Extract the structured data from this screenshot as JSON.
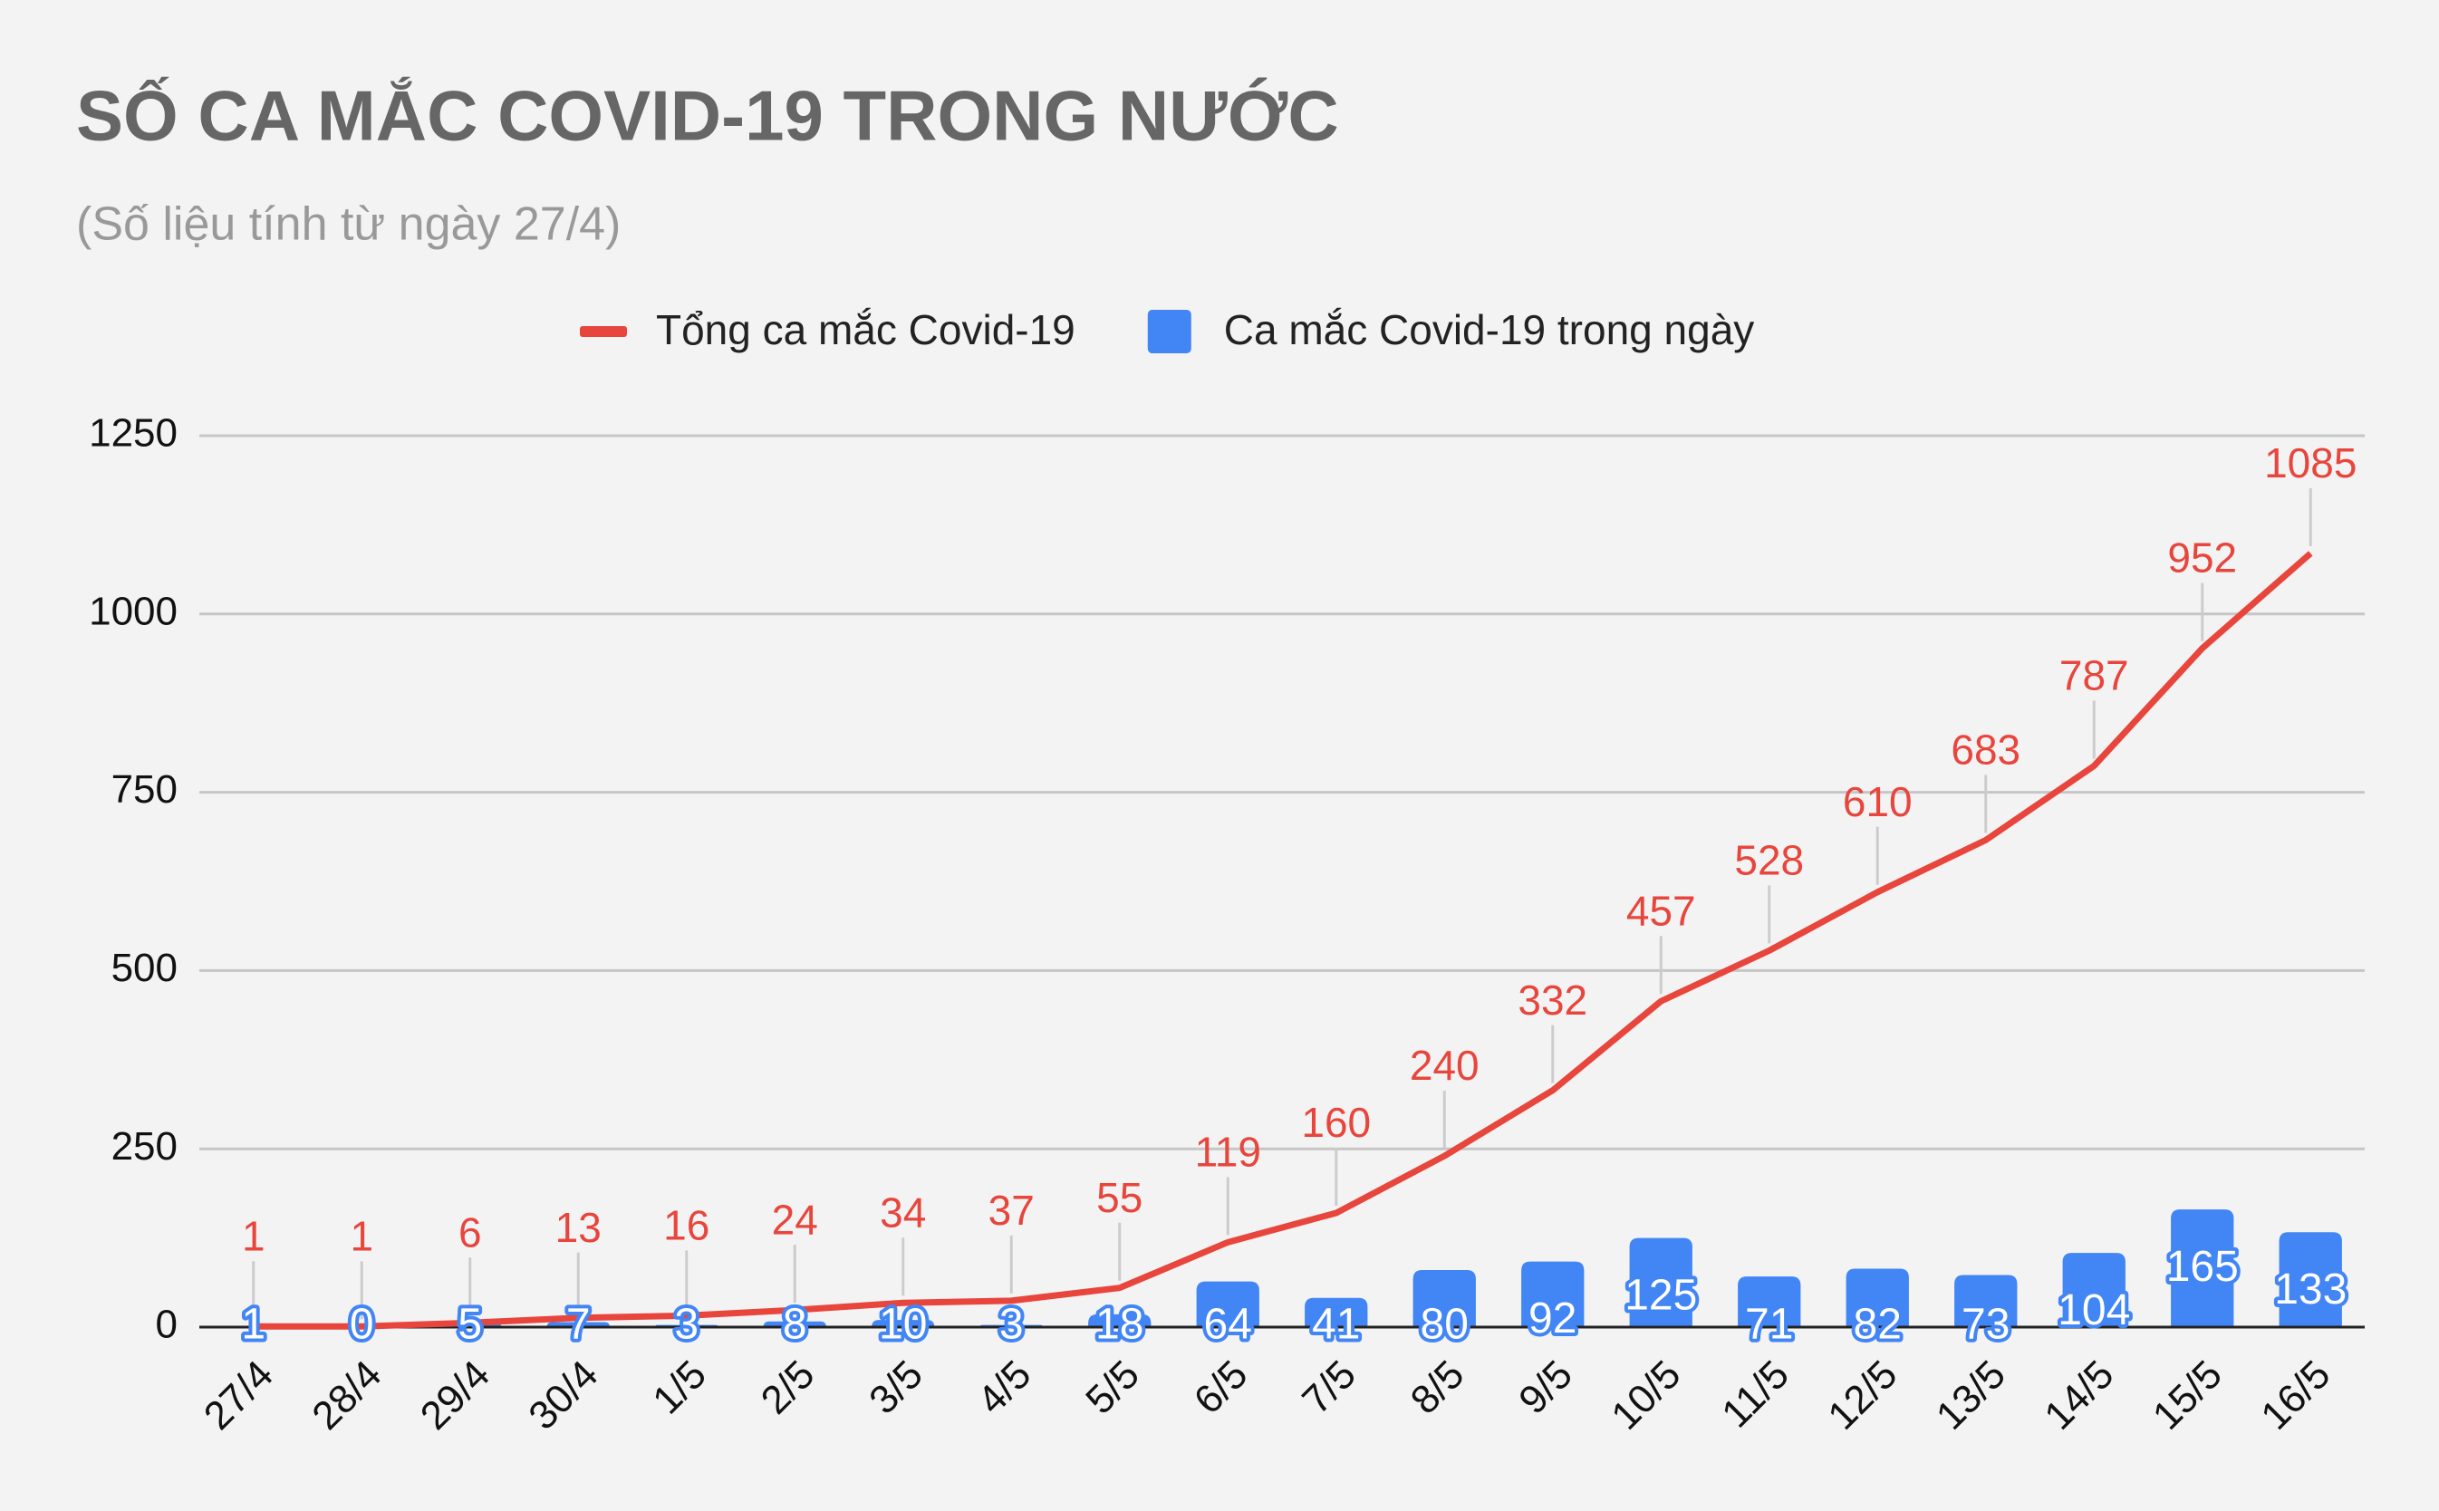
{
  "chart_data": {
    "type": "combo",
    "title": "SỐ CA MẮC COVID-19 TRONG NƯỚC",
    "subtitle": "(Số liệu tính từ ngày 27/4)",
    "categories": [
      "27/4",
      "28/4",
      "29/4",
      "30/4",
      "1/5",
      "2/5",
      "3/5",
      "4/5",
      "5/5",
      "6/5",
      "7/5",
      "8/5",
      "9/5",
      "10/5",
      "11/5",
      "12/5",
      "13/5",
      "14/5",
      "15/5",
      "16/5"
    ],
    "series": [
      {
        "name": "Tổng ca mắc Covid-19",
        "type": "line",
        "color": "#e8453c",
        "values": [
          1,
          1,
          6,
          13,
          16,
          24,
          34,
          37,
          55,
          119,
          160,
          240,
          332,
          457,
          528,
          610,
          683,
          787,
          952,
          1085
        ]
      },
      {
        "name": "Ca mắc Covid-19 trong ngày",
        "type": "bar",
        "color": "#4285f4",
        "values": [
          1,
          0,
          5,
          7,
          3,
          8,
          10,
          3,
          18,
          64,
          41,
          80,
          92,
          125,
          71,
          82,
          73,
          104,
          165,
          133
        ]
      }
    ],
    "ylim": [
      0,
      1250
    ],
    "yticks": [
      0,
      250,
      500,
      750,
      1000,
      1250
    ],
    "grid": true,
    "legend": "top"
  }
}
